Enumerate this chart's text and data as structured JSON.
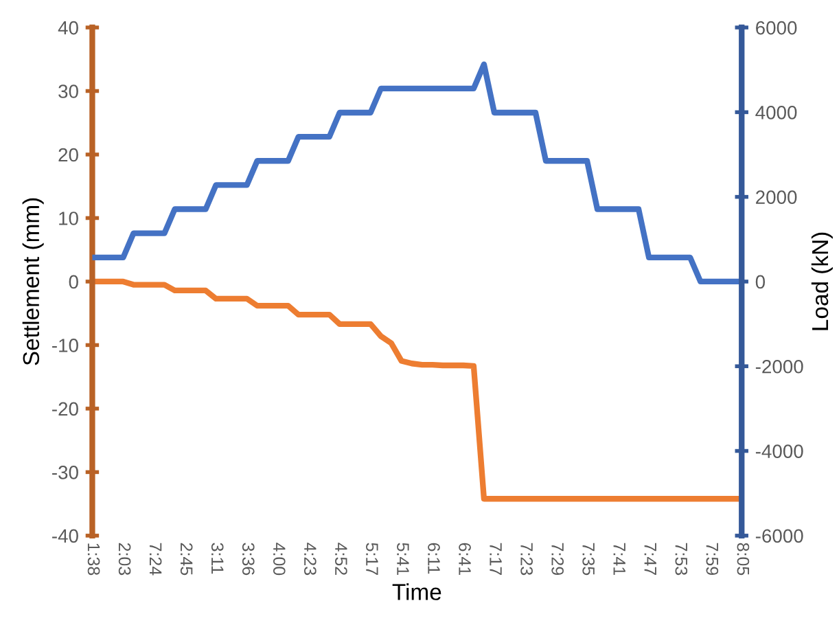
{
  "chart_data": {
    "type": "line",
    "xlabel": "Time",
    "ylabel": "Settlement (mm)",
    "y2label": "Load (kN)",
    "categories": [
      "1:38",
      null,
      null,
      "2:03",
      null,
      null,
      "7:24",
      null,
      null,
      "2:45",
      null,
      null,
      "3:11",
      null,
      null,
      "3:36",
      null,
      null,
      "4:00",
      null,
      null,
      "4:23",
      null,
      null,
      "4:52",
      null,
      null,
      "5:17",
      null,
      null,
      "5:41",
      null,
      null,
      "6:11",
      null,
      null,
      "6:41",
      null,
      null,
      "7:17",
      null,
      null,
      "7:23",
      null,
      null,
      "7:29",
      null,
      null,
      "7:35",
      null,
      null,
      "7:41",
      null,
      null,
      "7:47",
      null,
      null,
      "7:53",
      null,
      null,
      "7:59",
      null,
      null,
      "8:05"
    ],
    "series": [
      {
        "color": "#ed7d31",
        "values": [
          0,
          0,
          0,
          0,
          -0.5,
          -0.5,
          -0.5,
          -0.5,
          -1.4,
          -1.4,
          -1.4,
          -1.4,
          -2.7,
          -2.7,
          -2.7,
          -2.7,
          -3.8,
          -3.8,
          -3.8,
          -3.8,
          -5.2,
          -5.2,
          -5.2,
          -5.2,
          -6.7,
          -6.7,
          -6.7,
          -6.7,
          -8.6,
          -9.7,
          -12.5,
          -12.9,
          -13.1,
          -13.1,
          -13.2,
          -13.2,
          -13.2,
          -13.3,
          -34.2,
          -34.2,
          -34.2,
          -34.2,
          -34.2,
          -34.2,
          -34.2,
          -34.2,
          -34.2,
          -34.2,
          -34.2,
          -34.2,
          -34.2,
          -34.2,
          -34.2,
          -34.2,
          -34.2,
          -34.2,
          -34.2,
          -34.2,
          -34.2,
          -34.2,
          -34.2,
          -34.2,
          -34.2,
          -34.2
        ]
      },
      {
        "color": "#4472c4",
        "axis": "y2",
        "values": [
          570,
          570,
          570,
          570,
          1140,
          1140,
          1140,
          1140,
          1710,
          1710,
          1710,
          1710,
          2280,
          2280,
          2280,
          2280,
          2850,
          2850,
          2850,
          2850,
          3420,
          3420,
          3420,
          3420,
          3990,
          3990,
          3990,
          3990,
          4560,
          4560,
          4560,
          4560,
          4560,
          4560,
          4560,
          4560,
          4560,
          4560,
          5130,
          3990,
          3990,
          3990,
          3990,
          3990,
          2850,
          2850,
          2850,
          2850,
          2850,
          1710,
          1710,
          1710,
          1710,
          1710,
          570,
          570,
          570,
          570,
          570,
          0,
          0,
          0,
          0,
          0
        ]
      }
    ],
    "ylim": [
      -40,
      40
    ],
    "yticks": [
      -40,
      -30,
      -20,
      -10,
      0,
      10,
      20,
      30,
      40
    ],
    "y2lim": [
      -6000,
      6000
    ],
    "y2ticks": [
      -6000,
      -4000,
      -2000,
      0,
      2000,
      4000,
      6000
    ],
    "grid": false,
    "legend": false,
    "marker": "none",
    "line_style": "solid"
  }
}
